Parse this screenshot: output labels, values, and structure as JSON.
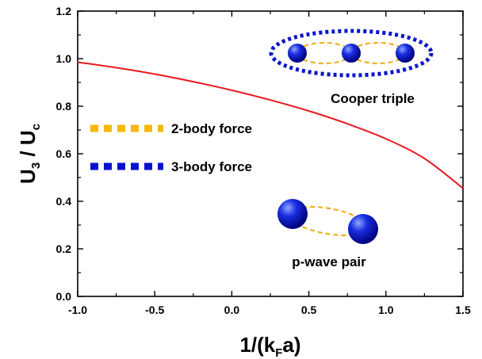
{
  "chart_data": {
    "type": "line",
    "xlabel": {
      "main": "1/(k",
      "sub": "F",
      "tail": "a)"
    },
    "ylabel": {
      "main1": "U",
      "sub1": "3",
      "sep": " / ",
      "main2": "U",
      "sub2": "c"
    },
    "xlim": [
      -1.0,
      1.5
    ],
    "ylim": [
      0.0,
      1.2
    ],
    "xticks": [
      -1.0,
      -0.5,
      0.0,
      0.5,
      1.0,
      1.5
    ],
    "xtick_labels": [
      "-1.0",
      "-0.5",
      "0.0",
      "0.5",
      "1.0",
      "1.5"
    ],
    "yticks": [
      0.0,
      0.2,
      0.4,
      0.6,
      0.8,
      1.0,
      1.2
    ],
    "ytick_labels": [
      "0.0",
      "0.2",
      "0.4",
      "0.6",
      "0.8",
      "1.0",
      "1.2"
    ],
    "grid": false,
    "series": [
      {
        "color": "#e8191c",
        "x": [
          -1.0,
          -0.75,
          -0.5,
          -0.25,
          0.0,
          0.25,
          0.5,
          0.75,
          1.0,
          1.25,
          1.5
        ],
        "y": [
          0.985,
          0.962,
          0.935,
          0.903,
          0.867,
          0.826,
          0.78,
          0.726,
          0.663,
          0.58,
          0.455
        ]
      }
    ],
    "annotations": {
      "legend_2body": {
        "label": "2-body force",
        "color": "#f5b800"
      },
      "legend_3body": {
        "label": "3-body force",
        "color": "#0a10d0"
      },
      "cooper_triple": {
        "label": "Cooper triple",
        "ellipse_color": "#0a14cc",
        "link_color": "#f0b020"
      },
      "pwave_pair": {
        "label": "p-wave pair",
        "link_color": "#f0b020"
      }
    },
    "colors": {
      "sphere_dark": "#00007a",
      "sphere_mid": "#1a2ee0",
      "sphere_light": "#8fa8ff"
    }
  }
}
